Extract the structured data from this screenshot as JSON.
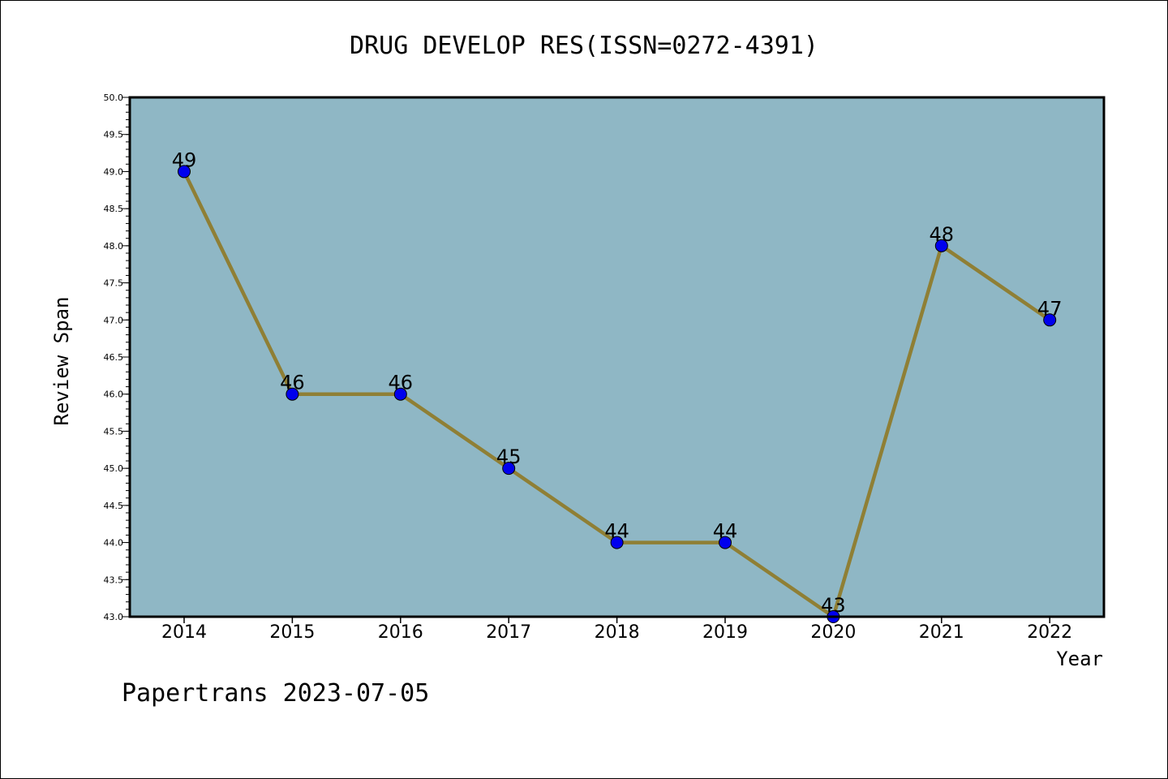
{
  "chart_data": {
    "type": "line",
    "title": "DRUG DEVELOP RES(ISSN=0272-4391)",
    "xlabel": "Year",
    "ylabel": "Review Span",
    "categories": [
      "2014",
      "2015",
      "2016",
      "2017",
      "2018",
      "2019",
      "2020",
      "2021",
      "2022"
    ],
    "series": [
      {
        "values": [
          49,
          46,
          46,
          45,
          44,
          44,
          43,
          48,
          47
        ]
      }
    ],
    "data_labels": [
      "49",
      "46",
      "46",
      "45",
      "44",
      "44",
      "43",
      "48",
      "47"
    ],
    "ylim": [
      43.0,
      50.0
    ],
    "yticks": [
      "43.0",
      "43.5",
      "44.0",
      "44.5",
      "45.0",
      "45.5",
      "46.0",
      "46.5",
      "47.0",
      "47.5",
      "48.0",
      "48.5",
      "49.0",
      "49.5",
      "50.0"
    ],
    "grid": false,
    "colors": {
      "plot_background": "#8fb7c5",
      "line": "#8f7f35",
      "marker": "#0000ee"
    }
  },
  "footer": {
    "text": "Papertrans 2023-07-05"
  }
}
